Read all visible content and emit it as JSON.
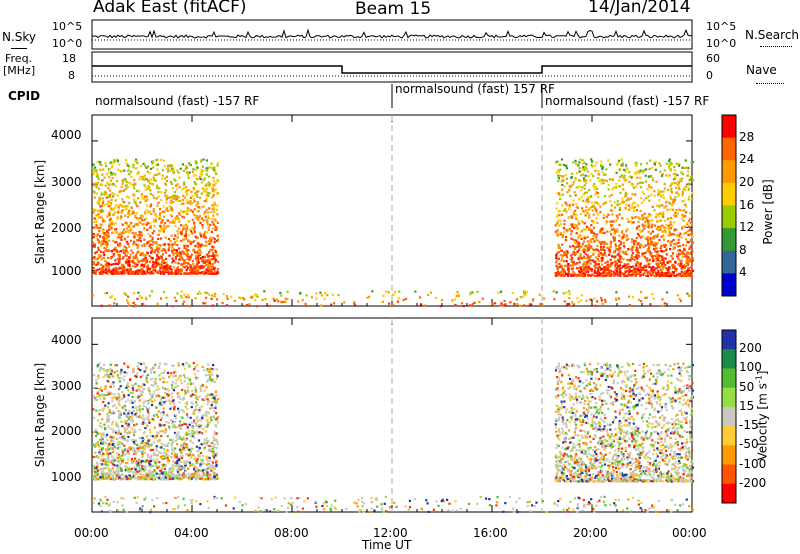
{
  "header": {
    "station": "Adak East (fitACF)",
    "beam": "Beam 15",
    "date": "14/Jan/2014"
  },
  "top_panels": {
    "nsky_label": "N.Sky",
    "nsky_ticks": [
      "10^5",
      "10^0"
    ],
    "nsearch_label": "N.Search",
    "nsearch_ticks": [
      "10^5",
      "10^0"
    ],
    "freq_label_line1": "Freq.",
    "freq_label_line2": "[MHz]",
    "freq_ticks": [
      "18",
      "8"
    ],
    "nave_label": "Nave",
    "nave_ticks": [
      "60",
      "0"
    ],
    "cpid_label": "CPID",
    "cpid_segments": [
      {
        "text": "normalsound (fast) -157 RF",
        "start_hour": 0,
        "end_hour": 12
      },
      {
        "text": "normalsound (fast) 157 RF",
        "start_hour": 12,
        "end_hour": 18
      },
      {
        "text": "normalsound (fast) -157 RF",
        "start_hour": 18,
        "end_hour": 24
      }
    ],
    "freq_steps": [
      {
        "start_hour": 0,
        "end_hour": 10,
        "level": "high"
      },
      {
        "start_hour": 10,
        "end_hour": 18,
        "level": "low"
      },
      {
        "start_hour": 18,
        "end_hour": 24,
        "level": "high"
      }
    ]
  },
  "chart_data": [
    {
      "type": "heatmap",
      "name": "power",
      "ylabel": "Slant Range [km]",
      "xlabel": "Time UT",
      "x_range_hours": [
        0,
        24
      ],
      "xtick_labels": [
        "00:00",
        "04:00",
        "08:00",
        "12:00",
        "16:00",
        "20:00",
        "00:00"
      ],
      "ylim": [
        180,
        4600
      ],
      "yticks": [
        1000,
        2000,
        3000,
        4000
      ],
      "colorbar_label": "Power [dB]",
      "colorbar_ticks": [
        "28",
        "24",
        "20",
        "16",
        "12",
        "8",
        "4"
      ],
      "colorbar_colors": [
        "#ff0000",
        "#ff6600",
        "#ff9900",
        "#ffcc00",
        "#99cc00",
        "#339933",
        "#336699",
        "#0000cc"
      ],
      "dashed_verticals_hours": [
        12,
        18
      ],
      "scatter_regions": [
        {
          "t0": 0.0,
          "t1": 5.0,
          "r_low": 950,
          "r_high": 3600,
          "dominant": "red-orange"
        },
        {
          "t0": 18.5,
          "t1": 24.0,
          "r_low": 900,
          "r_high": 3600,
          "dominant": "red-orange"
        },
        {
          "t0": 0.0,
          "t1": 24.0,
          "r_low": 200,
          "r_high": 550,
          "dominant": "mixed-sparse"
        }
      ]
    },
    {
      "type": "heatmap",
      "name": "velocity",
      "ylabel": "Slant Range [km]",
      "xlabel": "Time UT",
      "x_range_hours": [
        0,
        24
      ],
      "xtick_labels": [
        "00:00",
        "04:00",
        "08:00",
        "12:00",
        "16:00",
        "20:00",
        "00:00"
      ],
      "ylim": [
        180,
        4600
      ],
      "yticks": [
        1000,
        2000,
        3000,
        4000
      ],
      "colorbar_label": "Velocity [m s^-1]",
      "colorbar_ticks": [
        "200",
        "100",
        "50",
        "15",
        "-15",
        "-50",
        "-100",
        "-200"
      ],
      "colorbar_colors": [
        "#2233aa",
        "#1a8c4a",
        "#55bb33",
        "#99dd44",
        "#c8c8c0",
        "#ffcc33",
        "#ff9900",
        "#ff5500",
        "#ff0000"
      ],
      "dashed_verticals_hours": [
        12,
        18
      ],
      "scatter_regions": [
        {
          "t0": 0.0,
          "t1": 5.0,
          "r_low": 950,
          "r_high": 3600,
          "dominant": "grey"
        },
        {
          "t0": 18.5,
          "t1": 24.0,
          "r_low": 900,
          "r_high": 3600,
          "dominant": "grey-green"
        },
        {
          "t0": 0.0,
          "t1": 24.0,
          "r_low": 200,
          "r_high": 550,
          "dominant": "sparse-green-orange"
        }
      ]
    }
  ],
  "colors": {
    "axis": "#000000",
    "dashed": "#aaaaaa"
  }
}
